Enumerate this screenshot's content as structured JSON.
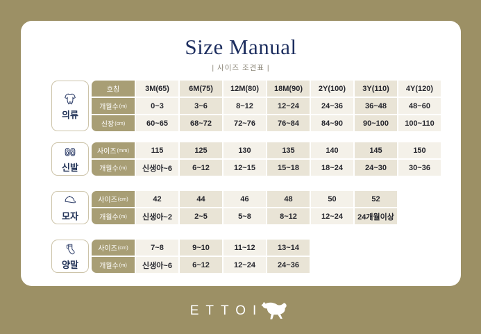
{
  "page": {
    "title": "Size Manual",
    "subtitle": "| 사이즈 조견표 |"
  },
  "brand": {
    "logo_text": "ETTOI",
    "logo_icon": "horse-icon"
  },
  "colors": {
    "background": "#9c9065",
    "card": "#ffffff",
    "header_cell": "#a89e75",
    "cell_light": "#f4f1e9",
    "cell_dark": "#e9e4d6",
    "title_navy": "#1d2e5f",
    "cell_text": "#25262d",
    "subtitle_gray": "#8b8577"
  },
  "tables": [
    {
      "category": "의류",
      "icon": "onesie-icon",
      "rows": [
        {
          "header": "호칭",
          "unit": "",
          "values": [
            "3M(65)",
            "6M(75)",
            "12M(80)",
            "18M(90)",
            "2Y(100)",
            "3Y(110)",
            "4Y(120)"
          ]
        },
        {
          "header": "개월수",
          "unit": "(m)",
          "values": [
            "0~3",
            "3~6",
            "8~12",
            "12~24",
            "24~36",
            "36~48",
            "48~60"
          ]
        },
        {
          "header": "신장",
          "unit": "(cm)",
          "values": [
            "60~65",
            "68~72",
            "72~76",
            "76~84",
            "84~90",
            "90~100",
            "100~110"
          ]
        }
      ]
    },
    {
      "category": "신발",
      "icon": "shoes-icon",
      "rows": [
        {
          "header": "사이즈",
          "unit": "(mm)",
          "values": [
            "115",
            "125",
            "130",
            "135",
            "140",
            "145",
            "150"
          ]
        },
        {
          "header": "개월수",
          "unit": "(m)",
          "values": [
            "신생아~6",
            "6~12",
            "12~15",
            "15~18",
            "18~24",
            "24~30",
            "30~36"
          ]
        }
      ]
    },
    {
      "category": "모자",
      "icon": "cap-icon",
      "rows": [
        {
          "header": "사이즈",
          "unit": "(cm)",
          "values": [
            "42",
            "44",
            "46",
            "48",
            "50",
            "52"
          ]
        },
        {
          "header": "개월수",
          "unit": "(m)",
          "values": [
            "신생아~2",
            "2~5",
            "5~8",
            "8~12",
            "12~24",
            "24개월이상"
          ]
        }
      ]
    },
    {
      "category": "양말",
      "icon": "sock-icon",
      "rows": [
        {
          "header": "사이즈",
          "unit": "(cm)",
          "values": [
            "7~8",
            "9~10",
            "11~12",
            "13~14"
          ]
        },
        {
          "header": "개월수",
          "unit": "(m)",
          "values": [
            "신생아~6",
            "6~12",
            "12~24",
            "24~36"
          ]
        }
      ]
    }
  ]
}
